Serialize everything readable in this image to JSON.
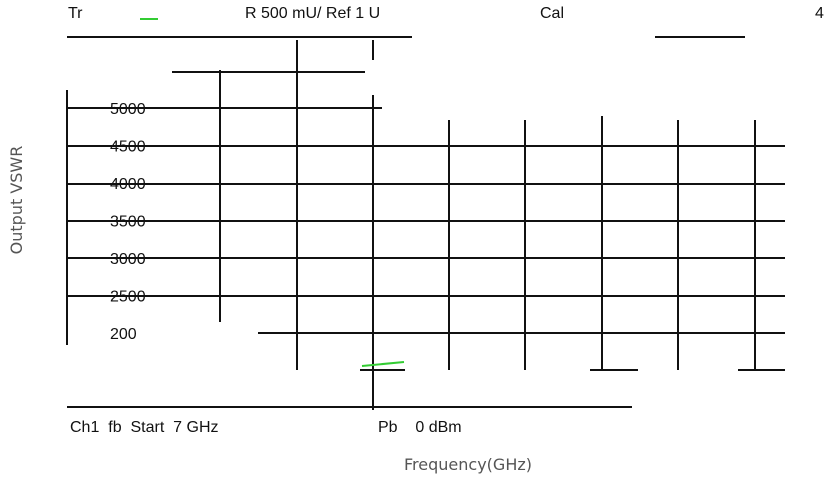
{
  "header": {
    "trace": "Tr",
    "scale": "R 500 mU/ Ref 1 U",
    "cal": "Cal",
    "channel_count": "4"
  },
  "y_axis": {
    "label": "Output VSWR",
    "ticks": [
      "5000",
      "4500",
      "4000",
      "3500",
      "3000",
      "2500",
      "200"
    ]
  },
  "footer": {
    "start": "Ch1  fb  Start  7 GHz",
    "power": "Pb    0 dBm"
  },
  "x_axis": {
    "label": "Frequency(GHz)"
  }
}
